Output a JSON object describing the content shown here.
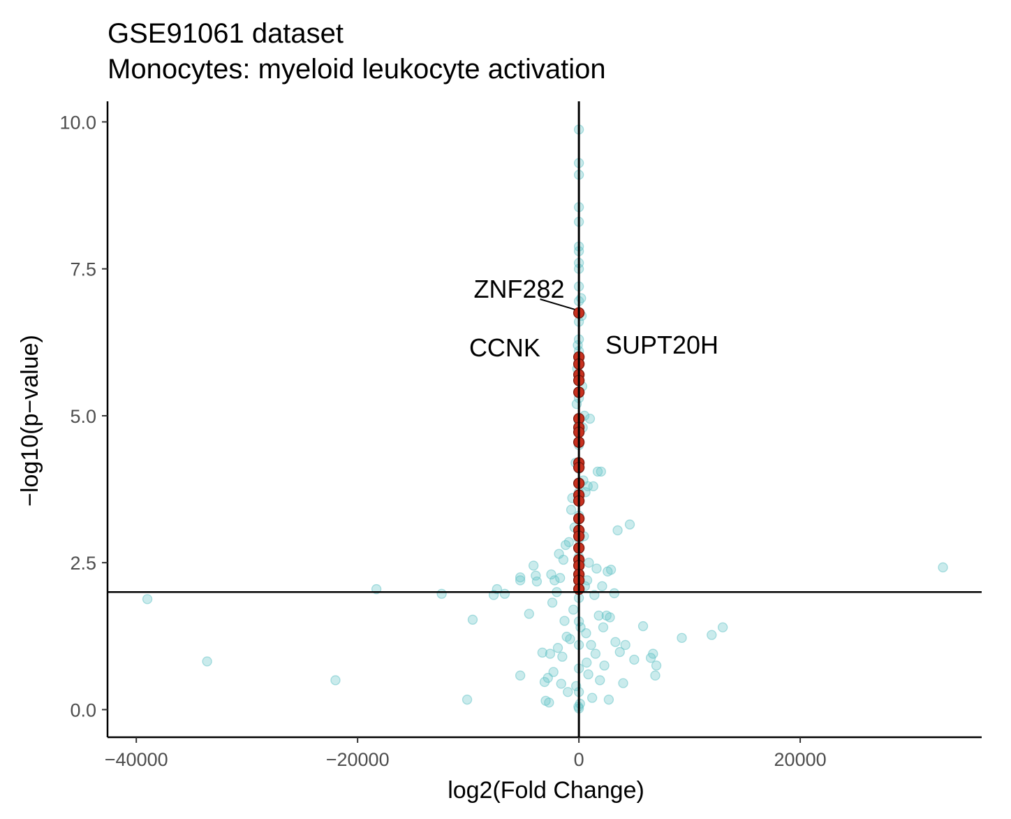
{
  "chart_data": {
    "type": "scatter",
    "title": "GSE91061 dataset",
    "subtitle": "Monocytes: myeloid leukocyte activation",
    "xlabel": "log2(Fold Change)",
    "ylabel": "−log10(p−value)",
    "xlim": [
      -42600,
      36400
    ],
    "ylim": [
      -0.47,
      10.35
    ],
    "xticks": [
      -40000,
      -20000,
      0,
      20000
    ],
    "xtick_labels": [
      "−40000",
      "−20000",
      "0",
      "20000"
    ],
    "yticks": [
      0.0,
      2.5,
      5.0,
      7.5,
      10.0
    ],
    "ytick_labels": [
      "0.0",
      "2.5",
      "5.0",
      "7.5",
      "10.0"
    ],
    "reference_lines": {
      "hline_y": 2.0,
      "vline_x": 0
    },
    "grid": false,
    "colors": {
      "background_points": "#5bc0c4",
      "highlight_points": "#c8311f",
      "highlight_outline": "#7a1a10",
      "axis": "#000000"
    },
    "series": [
      {
        "role": "background",
        "points": [
          [
            -39000,
            1.88
          ],
          [
            -33600,
            0.82
          ],
          [
            -22000,
            0.5
          ],
          [
            -18300,
            2.05
          ],
          [
            -12400,
            1.97
          ],
          [
            -10100,
            0.17
          ],
          [
            -9600,
            1.53
          ],
          [
            -7700,
            1.95
          ],
          [
            -7400,
            2.05
          ],
          [
            -6700,
            1.97
          ],
          [
            -5300,
            2.2
          ],
          [
            -5300,
            2.25
          ],
          [
            -5300,
            0.58
          ],
          [
            -4500,
            1.63
          ],
          [
            -4100,
            2.45
          ],
          [
            -3900,
            2.28
          ],
          [
            -3800,
            2.18
          ],
          [
            -3300,
            0.97
          ],
          [
            -3100,
            0.47
          ],
          [
            -3000,
            0.15
          ],
          [
            -2800,
            0.54
          ],
          [
            -2700,
            0.12
          ],
          [
            -2600,
            0.95
          ],
          [
            -2500,
            2.3
          ],
          [
            -2400,
            1.82
          ],
          [
            -2300,
            0.64
          ],
          [
            -2200,
            2.2
          ],
          [
            -2000,
            2.0
          ],
          [
            -1900,
            1.05
          ],
          [
            -1800,
            2.65
          ],
          [
            -1700,
            2.24
          ],
          [
            -1600,
            0.44
          ],
          [
            -1500,
            0.9
          ],
          [
            -1400,
            2.55
          ],
          [
            -1300,
            1.51
          ],
          [
            -1200,
            2.8
          ],
          [
            -1100,
            1.24
          ],
          [
            -1000,
            0.3
          ],
          [
            -900,
            2.85
          ],
          [
            -800,
            1.2
          ],
          [
            -700,
            3.4
          ],
          [
            -600,
            3.6
          ],
          [
            -500,
            1.7
          ],
          [
            -400,
            3.1
          ],
          [
            -300,
            4.2
          ],
          [
            -250,
            0.4
          ],
          [
            -200,
            5.2
          ],
          [
            -150,
            5.8
          ],
          [
            -100,
            6.2
          ],
          [
            -50,
            0.05
          ],
          [
            0,
            9.87
          ],
          [
            0,
            9.3
          ],
          [
            0,
            9.1
          ],
          [
            0,
            8.55
          ],
          [
            0,
            8.3
          ],
          [
            0,
            7.88
          ],
          [
            0,
            7.8
          ],
          [
            0,
            7.6
          ],
          [
            0,
            7.5
          ],
          [
            0,
            7.2
          ],
          [
            0,
            6.95
          ],
          [
            0,
            6.6
          ],
          [
            0,
            6.3
          ],
          [
            0,
            6.1
          ],
          [
            0,
            5.7
          ],
          [
            0,
            5.3
          ],
          [
            0,
            4.9
          ],
          [
            0,
            4.5
          ],
          [
            0,
            4.1
          ],
          [
            0,
            3.7
          ],
          [
            0,
            3.3
          ],
          [
            0,
            2.9
          ],
          [
            0,
            2.6
          ],
          [
            0,
            2.3
          ],
          [
            0,
            1.9
          ],
          [
            0,
            1.5
          ],
          [
            0,
            1.1
          ],
          [
            0,
            0.7
          ],
          [
            0,
            0.3
          ],
          [
            0,
            0.02
          ],
          [
            100,
            0.1
          ],
          [
            150,
            1.4
          ],
          [
            200,
            7.0
          ],
          [
            250,
            6.7
          ],
          [
            300,
            5.5
          ],
          [
            350,
            4.8
          ],
          [
            400,
            3.9
          ],
          [
            450,
            2.95
          ],
          [
            500,
            5.0
          ],
          [
            550,
            2.1
          ],
          [
            600,
            3.7
          ],
          [
            650,
            1.3
          ],
          [
            700,
            0.8
          ],
          [
            750,
            2.2
          ],
          [
            800,
            3.8
          ],
          [
            850,
            0.6
          ],
          [
            900,
            2.5
          ],
          [
            1000,
            4.95
          ],
          [
            1100,
            1.1
          ],
          [
            1200,
            0.2
          ],
          [
            1300,
            3.8
          ],
          [
            1400,
            1.95
          ],
          [
            1500,
            0.95
          ],
          [
            1600,
            2.4
          ],
          [
            1700,
            4.05
          ],
          [
            1800,
            1.6
          ],
          [
            1900,
            0.5
          ],
          [
            2000,
            4.05
          ],
          [
            2100,
            2.1
          ],
          [
            2200,
            1.4
          ],
          [
            2300,
            0.75
          ],
          [
            2500,
            1.6
          ],
          [
            2600,
            2.35
          ],
          [
            2700,
            0.17
          ],
          [
            2800,
            1.57
          ],
          [
            2900,
            2.38
          ],
          [
            3200,
            1.98
          ],
          [
            3300,
            1.15
          ],
          [
            3500,
            3.05
          ],
          [
            3700,
            0.98
          ],
          [
            4000,
            0.45
          ],
          [
            4200,
            1.1
          ],
          [
            4600,
            3.15
          ],
          [
            5000,
            0.85
          ],
          [
            5800,
            1.42
          ],
          [
            6500,
            0.88
          ],
          [
            6700,
            0.95
          ],
          [
            6900,
            0.58
          ],
          [
            7000,
            0.75
          ],
          [
            9300,
            1.22
          ],
          [
            12000,
            1.27
          ],
          [
            13000,
            1.4
          ],
          [
            32900,
            2.42
          ]
        ]
      },
      {
        "role": "highlighted",
        "points": [
          [
            0,
            6.75
          ],
          [
            0,
            6.0
          ],
          [
            0,
            5.88
          ],
          [
            0,
            5.7
          ],
          [
            0,
            5.6
          ],
          [
            0,
            5.4
          ],
          [
            0,
            4.95
          ],
          [
            0,
            4.8
          ],
          [
            0,
            4.72
          ],
          [
            0,
            4.55
          ],
          [
            0,
            4.2
          ],
          [
            0,
            4.12
          ],
          [
            0,
            3.85
          ],
          [
            0,
            3.65
          ],
          [
            0,
            3.55
          ],
          [
            0,
            3.25
          ],
          [
            0,
            3.05
          ],
          [
            0,
            2.95
          ],
          [
            0,
            2.75
          ],
          [
            0,
            2.55
          ],
          [
            0,
            2.45
          ],
          [
            0,
            2.3
          ],
          [
            0,
            2.2
          ],
          [
            0,
            2.05
          ]
        ]
      }
    ],
    "annotations": [
      {
        "text": "ZNF282",
        "x": 0,
        "y": 6.75,
        "label_x": -5400,
        "label_y": 7.15
      },
      {
        "text": "CCNK",
        "x": 0,
        "y": 6.0,
        "label_x": -6700,
        "label_y": 6.15
      },
      {
        "text": "SUPT20H",
        "x": 0,
        "y": 5.7,
        "label_x": 7500,
        "label_y": 6.2
      }
    ]
  }
}
